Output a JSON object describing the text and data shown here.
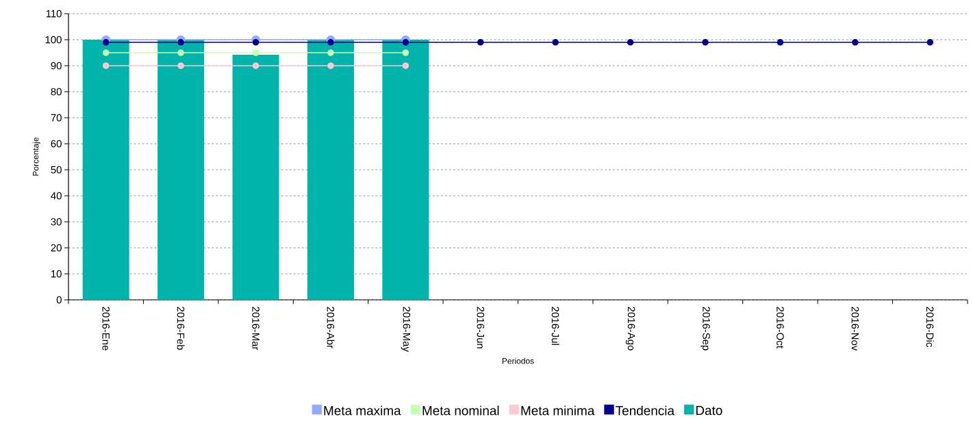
{
  "chart_data": {
    "type": "bar",
    "xlabel": "Periodos",
    "ylabel": "Porcentaje",
    "categories": [
      "2016-Ene",
      "2016-Feb",
      "2016-Mar",
      "2016-Abr",
      "2016-May",
      "2016-Jun",
      "2016-Jul",
      "2016-Ago",
      "2016-Sep",
      "2016-Oct",
      "2016-Nov",
      "2016-Dic"
    ],
    "ylim": [
      0,
      110
    ],
    "yticks": [
      0,
      10,
      20,
      30,
      40,
      50,
      60,
      70,
      80,
      90,
      100,
      110
    ],
    "grid": "y",
    "legend": "bottom",
    "marker": "circle",
    "series": [
      {
        "name": "Meta maxima",
        "type": "line",
        "color": "#92aaff",
        "values": [
          100,
          100,
          100,
          100,
          100,
          null,
          null,
          null,
          null,
          null,
          null,
          null
        ]
      },
      {
        "name": "Meta nominal",
        "type": "line",
        "color": "#c6ffb4",
        "values": [
          95,
          95,
          95,
          95,
          95,
          null,
          null,
          null,
          null,
          null,
          null,
          null
        ]
      },
      {
        "name": "Meta minima",
        "type": "line",
        "color": "#ffc9d4",
        "values": [
          90,
          90,
          90,
          90,
          90,
          null,
          null,
          null,
          null,
          null,
          null,
          null
        ]
      },
      {
        "name": "Tendencia",
        "type": "line",
        "color": "#000090",
        "values": [
          99,
          99,
          99,
          99,
          99,
          99,
          99,
          99,
          99,
          99,
          99,
          99
        ]
      },
      {
        "name": "Dato",
        "color": "#00b4ac",
        "values": [
          100,
          100,
          94.2,
          100,
          100,
          null,
          null,
          null,
          null,
          null,
          null,
          null
        ]
      }
    ]
  }
}
